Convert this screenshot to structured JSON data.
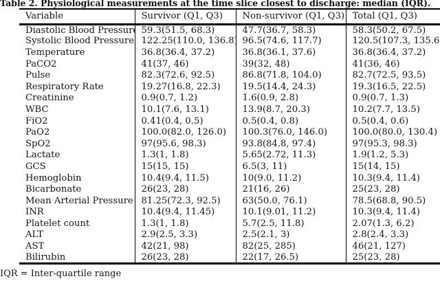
{
  "caption": {
    "text": "Table 2. Physiological measurements at the time slice closest to discharge: median (IQR)."
  },
  "footnote": "IQR = Inter-quartile range",
  "table": {
    "columns": [
      "Variable",
      "Survivor (Q1, Q3)",
      "Non-survivor (Q1, Q3)",
      "Total (Q1, Q3)"
    ],
    "rows": [
      {
        "variable": "Diastolic Blood Pressure",
        "survivor": "59.3(51.5, 68.3)",
        "non_survivor": "47.7(36.7, 58.3)",
        "total": "58.3(50.2, 67.5)"
      },
      {
        "variable": "Systolic Blood Pressure",
        "survivor": "122.25(110.0, 136.8)",
        "non_survivor": "96.5(74.6, 117.7)",
        "total": "120.5(107.3, 135.6)"
      },
      {
        "variable": "Temperature",
        "survivor": "36.8(36.4, 37.2)",
        "non_survivor": "36.8(36.1, 37.6)",
        "total": "36.8(36.4, 37.2)"
      },
      {
        "variable": "PaCO2",
        "survivor": "41(37, 46)",
        "non_survivor": "39(32, 48)",
        "total": "41(36, 46)"
      },
      {
        "variable": "Pulse",
        "survivor": "82.3(72.6, 92.5)",
        "non_survivor": "86.8(71.8, 104.0)",
        "total": "82.7(72.5, 93.5)"
      },
      {
        "variable": "Respiratory Rate",
        "survivor": "19.27(16.8, 22.3)",
        "non_survivor": "19.5(14.4, 24.3)",
        "total": "19.3(16.5, 22.5)"
      },
      {
        "variable": "Creatinine",
        "survivor": "0.9(0.7, 1.2)",
        "non_survivor": "1.6(0.9, 2.8)",
        "total": "0.9(0.7, 1.3)"
      },
      {
        "variable": "WBC",
        "survivor": "10.1(7.6, 13.1)",
        "non_survivor": "13.9(8.7, 20.3)",
        "total": "10.2(7.7, 13.5)"
      },
      {
        "variable": "FiO2",
        "survivor": "0.41(0.4, 0.5)",
        "non_survivor": "0.5(0.4, 0.8)",
        "total": "0.5(0.4, 0.6)"
      },
      {
        "variable": "PaO2",
        "survivor": "100.0(82.0, 126.0)",
        "non_survivor": "100.3(76.0, 146.0)",
        "total": "100.0(80.0, 130.4)"
      },
      {
        "variable": "SpO2",
        "survivor": "97(95.6, 98.3)",
        "non_survivor": "93.8(84.8, 97.4)",
        "total": "97(95.3, 98.3)"
      },
      {
        "variable": "Lactate",
        "survivor": "1.3(1, 1.8)",
        "non_survivor": "5.65(2.72, 11.3)",
        "total": "1.9(1.2, 5.3)"
      },
      {
        "variable": "GCS",
        "survivor": "15(15, 15)",
        "non_survivor": "6.5(3, 11)",
        "total": "15(14, 15)"
      },
      {
        "variable": "Hemoglobin",
        "survivor": "10.4(9.4, 11.5)",
        "non_survivor": "10(9.0, 11.2)",
        "total": "10.3(9.4, 11.4)"
      },
      {
        "variable": "Bicarbonate",
        "survivor": "26(23, 28)",
        "non_survivor": "21(16, 26)",
        "total": "25(23, 28)"
      },
      {
        "variable": "Mean Arterial Pressure",
        "survivor": "81.25(72.3, 92.5)",
        "non_survivor": "63(50.0, 76.1)",
        "total": "78.5(68.8, 90.5)"
      },
      {
        "variable": "INR",
        "survivor": "10.4(9.4, 11.45)",
        "non_survivor": "10.1(9.01, 11.2)",
        "total": "10.3(9.4, 11.4)"
      },
      {
        "variable": "Platelet count",
        "survivor": "1.3(1, 1.8)",
        "non_survivor": "5.7(2.5, 11.8)",
        "total": "2.07(1.3, 6.2)"
      },
      {
        "variable": "ALT",
        "survivor": "2.9(2.5, 3.3)",
        "non_survivor": "2.5(2.1, 3)",
        "total": "2.8(2.4, 3.3)"
      },
      {
        "variable": "AST",
        "survivor": "42(21, 98)",
        "non_survivor": "82(25, 285)",
        "total": "46(21, 127)"
      },
      {
        "variable": "Bilirubin",
        "survivor": "26(23, 28)",
        "non_survivor": "22(17, 26.5)",
        "total": "25(23, 28)"
      }
    ]
  }
}
